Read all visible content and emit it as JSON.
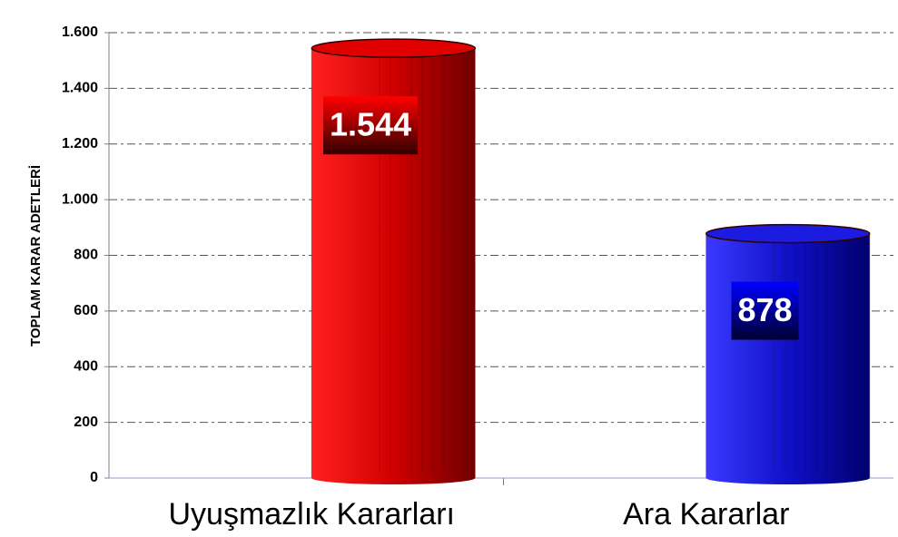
{
  "chart_data": {
    "type": "bar",
    "y_axis_label": "TOPLAM KARAR ADETLERİ",
    "categories": [
      "Uyuşmazlık Kararları",
      "Ara Kararlar"
    ],
    "values": [
      1544,
      878
    ],
    "value_labels": [
      "1.544",
      "878"
    ],
    "colors": [
      "#e00000",
      "#1c1ce0"
    ],
    "ylim": [
      0,
      1600
    ],
    "yticks": [
      0,
      200,
      400,
      600,
      800,
      {
        "value": 1000,
        "label": "1.000"
      },
      {
        "value": 1200,
        "label": "1.200"
      },
      {
        "value": 1400,
        "label": "1.400"
      },
      {
        "value": 1600,
        "label": "1.600"
      }
    ],
    "grid": true
  }
}
